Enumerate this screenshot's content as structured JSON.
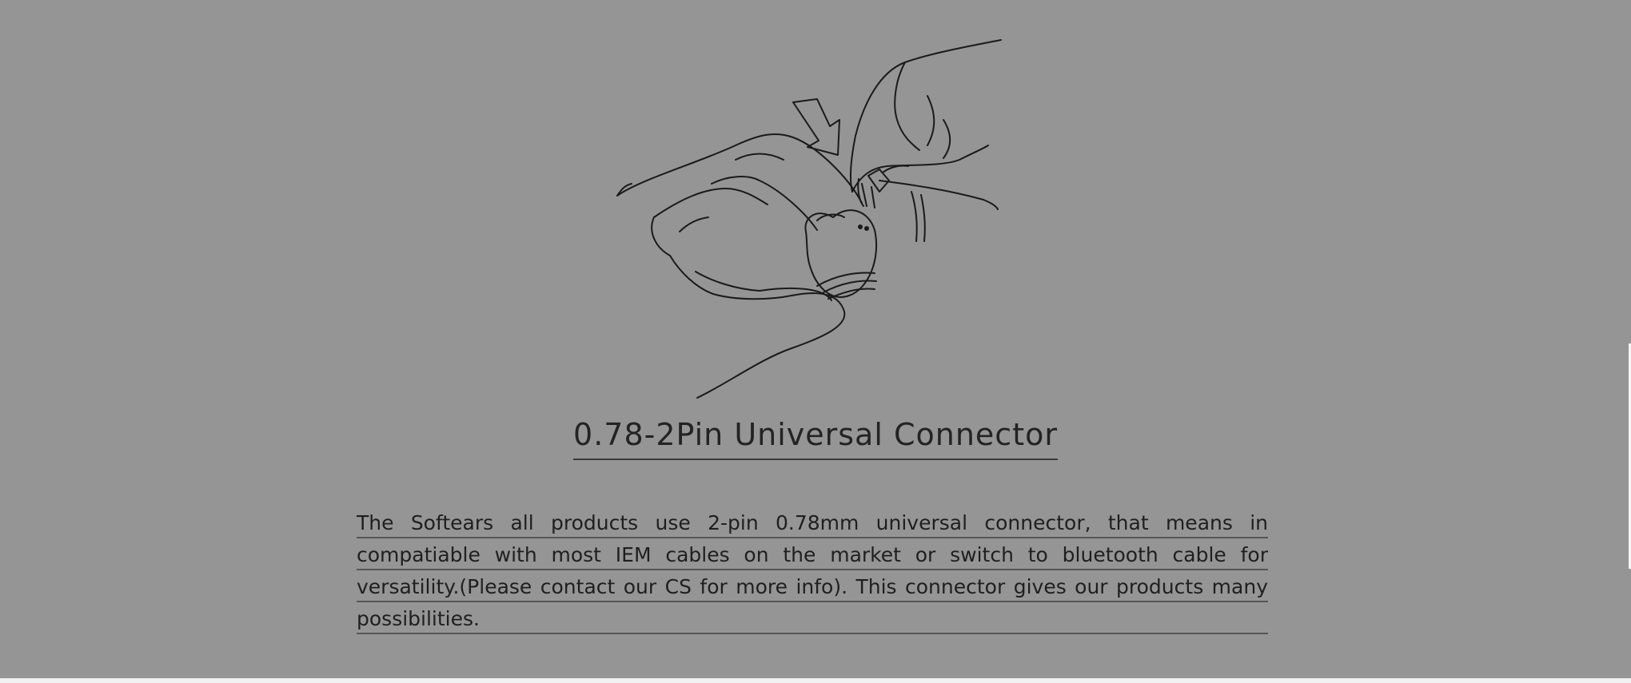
{
  "section": {
    "title": "0.78-2Pin Universal Connector",
    "description": "The Softears all products use 2-pin 0.78mm universal connector, that means in compatiable with most IEM cables on the market or switch to bluetooth cable for versatility.(Please contact our CS for more info). This connector gives our products many possibilities."
  },
  "illustration": {
    "icon": "hand-inserting-2pin-connector-icon"
  },
  "colors": {
    "background": "#959595",
    "text": "#232323",
    "line_art": "#1a1a1a"
  }
}
